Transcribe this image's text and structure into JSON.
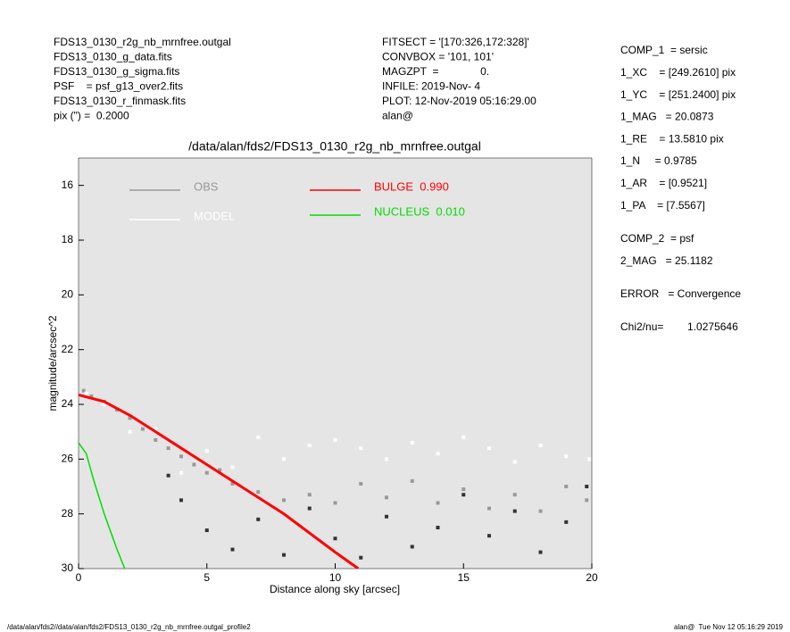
{
  "header": {
    "left": [
      "FDS13_0130_r2g_nb_mrnfree.outgal",
      "FDS13_0130_g_data.fits",
      "FDS13_0130_g_sigma.fits",
      "PSF    = psf_g13_over2.fits",
      "FDS13_0130_r_finmask.fits",
      "pix (\") =  0.2000"
    ],
    "middle": [
      "FITSECT = '[170:326,172:328]'",
      "CONVBOX = '101, 101'",
      "MAGZPT  =              0.",
      "INFILE: 2019-Nov- 4",
      "PLOT: 12-Nov-2019 05:16:29.00",
      "alan@"
    ]
  },
  "params": [
    [
      "COMP_1  = sersic",
      "1_XC    = [249.2610] pix",
      "1_YC    = [251.2400] pix",
      "1_MAG   = 20.0873",
      "1_RE    = 13.5810 pix",
      "1_N     = 0.9785",
      "1_AR    = [0.9521]",
      "1_PA    = [7.5567]"
    ],
    [
      "COMP_2  = psf",
      "2_MAG   = 25.1182"
    ],
    [
      "ERROR   = Convergence"
    ],
    [
      "Chi2/nu=        1.0275646"
    ]
  ],
  "footer": {
    "left": "/data/alan/fds2//data/alan/fds2/FDS13_0130_r2g_nb_mrnfree.outgal_profile2",
    "right": "alan@  Tue Nov 12 05:16:29 2019"
  },
  "chart_data": {
    "type": "scatter",
    "title": "/data/alan/fds2/FDS13_0130_r2g_nb_mrnfree.outgal",
    "x_label": "Distance along sky [arcsec]",
    "y_label": "magnitude/arcsec^2",
    "xlim": [
      0,
      20
    ],
    "ylim": [
      30,
      15
    ],
    "xticks": [
      0,
      5,
      10,
      15,
      20
    ],
    "yticks": [
      16,
      18,
      20,
      22,
      24,
      26,
      28,
      30
    ],
    "series": [
      {
        "name": "OBS",
        "color": "#999999",
        "x": [
          0.2,
          0.5,
          1,
          1.5,
          2,
          2.5,
          3,
          3.5,
          4,
          4.5,
          5,
          5.5,
          6,
          7,
          8,
          9,
          10,
          11,
          12,
          13,
          14,
          15,
          16,
          17,
          18,
          19,
          19.8
        ],
        "values": [
          23.5,
          23.7,
          23.9,
          24.2,
          24.5,
          24.9,
          25.3,
          25.6,
          25.9,
          26.2,
          26.5,
          26.4,
          26.9,
          27.2,
          27.5,
          27.3,
          27.6,
          26.9,
          27.4,
          26.8,
          27.6,
          27.1,
          27.8,
          27.3,
          27.9,
          27.0,
          27.5
        ]
      },
      {
        "name": "MODEL",
        "color": "#ffffff",
        "x": [
          0.3,
          1,
          2,
          3,
          4,
          5,
          6,
          7,
          8,
          9,
          10,
          11,
          12,
          13,
          14,
          15,
          16,
          17,
          18,
          19,
          19.9
        ],
        "values": [
          23.6,
          24.0,
          25.0,
          24.9,
          26.5,
          25.7,
          26.3,
          25.2,
          26.0,
          25.5,
          25.3,
          25.6,
          26.0,
          25.4,
          25.8,
          25.2,
          25.6,
          26.1,
          25.5,
          25.9,
          26.0
        ]
      },
      {
        "color": "#333333",
        "x": [
          3.5,
          4,
          5,
          6,
          7,
          8,
          9,
          10,
          11,
          12,
          13,
          14,
          15,
          16,
          17,
          18,
          19,
          19.8
        ],
        "values": [
          26.6,
          27.5,
          28.6,
          29.3,
          28.2,
          29.5,
          27.8,
          28.9,
          29.6,
          28.1,
          29.2,
          28.5,
          27.3,
          28.8,
          27.9,
          29.4,
          28.3,
          27.0
        ]
      },
      {
        "name": "BULGE  0.990",
        "type": "line",
        "color": "#ff0000",
        "x": [
          0,
          1,
          2,
          3,
          4,
          5,
          6,
          7,
          8,
          9,
          10,
          10.9
        ],
        "values": [
          23.65,
          23.9,
          24.4,
          25.0,
          25.6,
          26.2,
          26.8,
          27.4,
          28.0,
          28.7,
          29.4,
          30.0
        ]
      },
      {
        "name": "NUCLEUS  0.010",
        "type": "line",
        "color": "#00dd00",
        "x": [
          0,
          0.3,
          0.6,
          1,
          1.5,
          1.8
        ],
        "values": [
          25.4,
          25.8,
          26.8,
          28.0,
          29.3,
          30.0
        ]
      }
    ]
  }
}
